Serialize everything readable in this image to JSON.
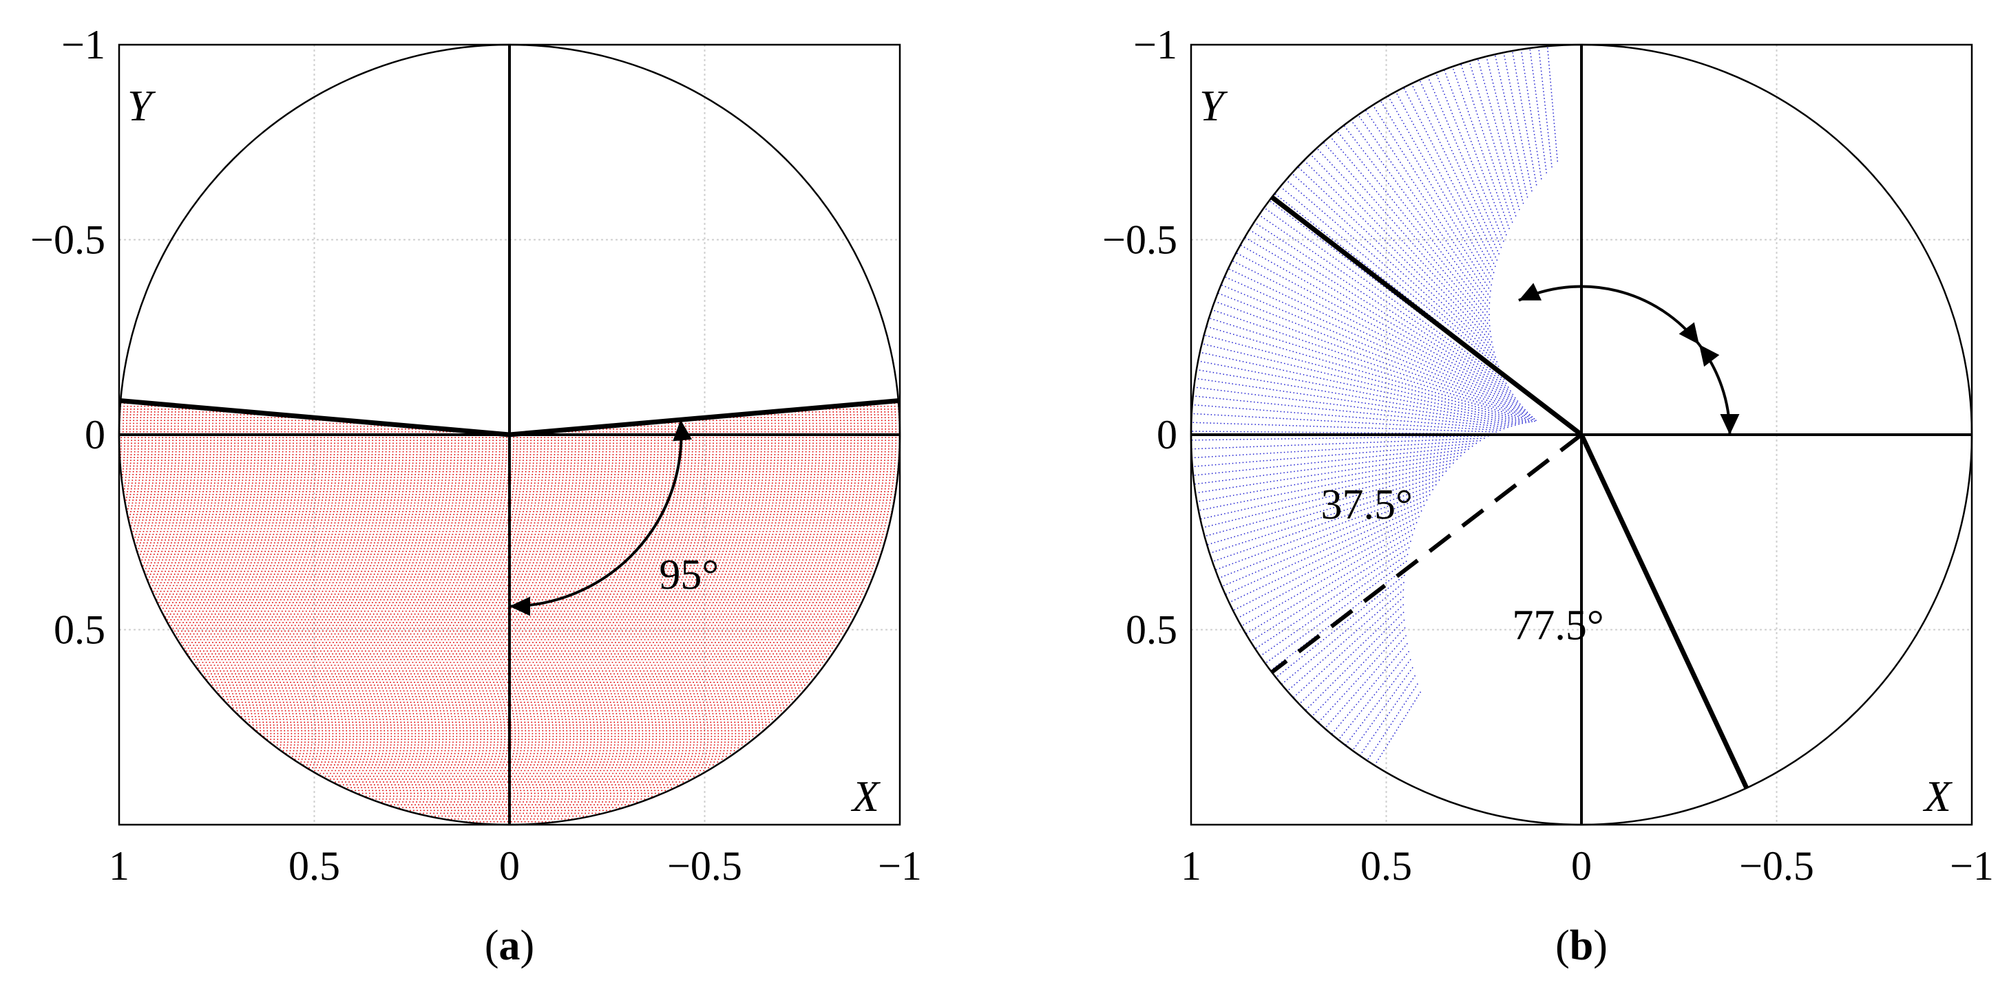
{
  "chart_data": [
    {
      "panel_label": "(a)",
      "panel_letter": "a",
      "type": "scatter",
      "xlim": [
        1,
        -1
      ],
      "ylim": [
        -1,
        1
      ],
      "x_reversed": true,
      "y_reversed": true,
      "grid": true,
      "x_ticks": [
        1,
        0.5,
        0,
        -0.5,
        -1
      ],
      "y_ticks": [
        -1,
        -0.5,
        0,
        0.5
      ],
      "x_tick_labels": [
        "1",
        "0.5",
        "0",
        "−0.5",
        "−1"
      ],
      "y_tick_labels": [
        "−1",
        "−0.5",
        "0",
        "0.5"
      ],
      "xlabel": "X",
      "ylabel": "Y",
      "unit_circle": true,
      "axis_lines": [
        [
          1,
          0,
          -1,
          0
        ],
        [
          0,
          -1,
          0,
          1
        ]
      ],
      "boundary_lines": [
        [
          0,
          0,
          1,
          -0.0875
        ],
        [
          0,
          0,
          -1,
          -0.0875
        ]
      ],
      "dashed_lines": [],
      "fill": {
        "color": "#e00000",
        "region": "below_V",
        "depth": 0.0875
      },
      "angle_arcs": [
        {
          "label": "95°",
          "radius": 0.44,
          "from_deg": 90,
          "to_deg": 185,
          "label_x": -0.46,
          "label_y": 0.37
        }
      ]
    },
    {
      "panel_label": "(b)",
      "panel_letter": "b",
      "type": "scatter",
      "xlim": [
        1,
        -1
      ],
      "ylim": [
        -1,
        1
      ],
      "x_reversed": true,
      "y_reversed": true,
      "grid": true,
      "x_ticks": [
        1,
        0.5,
        0,
        -0.5,
        -1
      ],
      "y_ticks": [
        -1,
        -0.5,
        0,
        0.5
      ],
      "x_tick_labels": [
        "1",
        "0.5",
        "0",
        "−0.5",
        "−1"
      ],
      "y_tick_labels": [
        "−1",
        "−0.5",
        "0",
        "0.5"
      ],
      "xlabel": "X",
      "ylabel": "Y",
      "unit_circle": true,
      "axis_lines": [
        [
          1,
          0,
          -1,
          0
        ],
        [
          0,
          -1,
          0,
          1
        ]
      ],
      "boundary_lines": [
        [
          0,
          0,
          0.793,
          -0.609
        ],
        [
          0,
          0,
          -0.423,
          0.906
        ]
      ],
      "dashed_lines": [
        [
          0,
          0,
          0.793,
          0.609
        ]
      ],
      "fill": {
        "color": "#1a1ad0",
        "region": "wedge",
        "from_deg": 37.5,
        "to_deg": 245,
        "inner_gap": 0.62
      },
      "angle_arcs": [
        {
          "label": "37.5°",
          "radius": 0.38,
          "from_deg": 180,
          "to_deg": 217.5,
          "label_x": 0.55,
          "label_y": 0.19
        },
        {
          "label": "77.5°",
          "radius": 0.38,
          "from_deg": 217.5,
          "to_deg": 295,
          "label_x": 0.06,
          "label_y": 0.5
        }
      ]
    }
  ]
}
